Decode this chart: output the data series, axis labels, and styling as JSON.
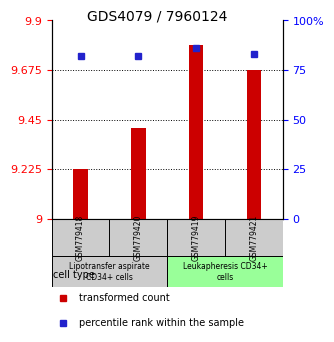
{
  "title": "GDS4079 / 7960124",
  "samples": [
    "GSM779418",
    "GSM779420",
    "GSM779419",
    "GSM779421"
  ],
  "transformed_counts": [
    9.225,
    9.41,
    9.79,
    9.675
  ],
  "percentile_ranks": [
    82,
    82,
    86,
    83
  ],
  "ylim_left": [
    9.0,
    9.9
  ],
  "yticks_left": [
    9,
    9.225,
    9.45,
    9.675,
    9.9
  ],
  "yticks_right": [
    0,
    25,
    50,
    75,
    100
  ],
  "bar_color": "#cc0000",
  "dot_color": "#2222cc",
  "background_color": "#ffffff",
  "groups": [
    {
      "label": "Lipotransfer aspirate\nCD34+ cells",
      "samples": [
        0,
        1
      ],
      "color": "#cccccc"
    },
    {
      "label": "Leukapheresis CD34+\ncells",
      "samples": [
        2,
        3
      ],
      "color": "#99ff99"
    }
  ],
  "legend_items": [
    {
      "color": "#cc0000",
      "marker": "s",
      "label": "transformed count"
    },
    {
      "color": "#2222cc",
      "marker": "s",
      "label": "percentile rank within the sample"
    }
  ],
  "cell_type_label": "cell type"
}
